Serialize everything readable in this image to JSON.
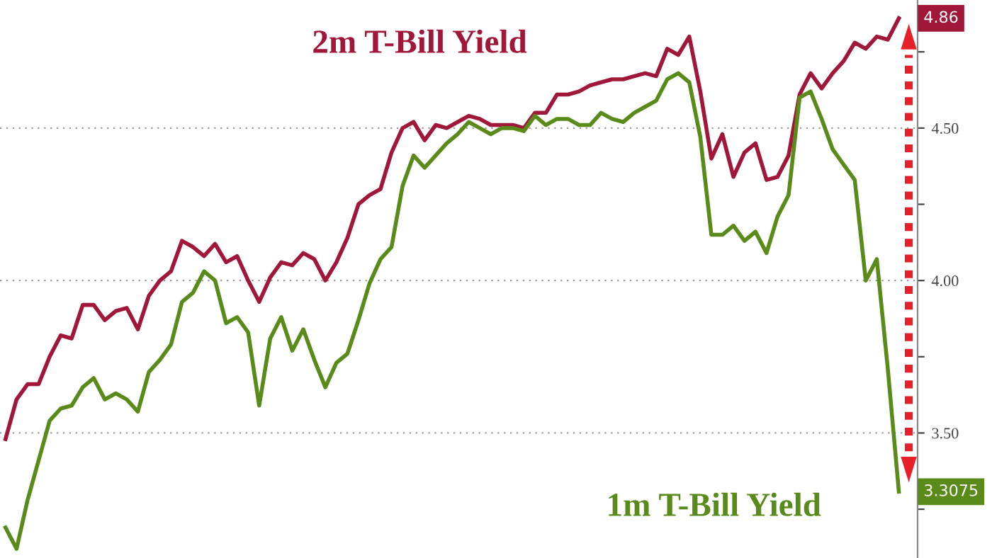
{
  "chart_data": {
    "type": "line",
    "categories": [
      null,
      null,
      null,
      null,
      null,
      null,
      null,
      null,
      null,
      null,
      null,
      null,
      null,
      null,
      null,
      null,
      null,
      null,
      null,
      null,
      null,
      null,
      null,
      null,
      null,
      null,
      null,
      null,
      null,
      null,
      null,
      null,
      null,
      null,
      null,
      null,
      null,
      null,
      null,
      null,
      null,
      null,
      null,
      null,
      null,
      null,
      null,
      null,
      null,
      null,
      null,
      null,
      null,
      null,
      null,
      null,
      null,
      null,
      null,
      null,
      null,
      null,
      null,
      null,
      null,
      null,
      null,
      null,
      null,
      null,
      null,
      null,
      null,
      null,
      null,
      null,
      null,
      null,
      null,
      null,
      null,
      null
    ],
    "series": [
      {
        "name": "2m T-Bill Yield",
        "color": "#a0173a",
        "values": [
          3.48,
          3.61,
          3.66,
          3.66,
          3.75,
          3.82,
          3.81,
          3.92,
          3.92,
          3.87,
          3.9,
          3.91,
          3.84,
          3.95,
          4.0,
          4.03,
          4.13,
          4.11,
          4.08,
          4.12,
          4.06,
          4.08,
          4.0,
          3.93,
          4.01,
          4.06,
          4.05,
          4.09,
          4.07,
          4.0,
          4.06,
          4.14,
          4.25,
          4.28,
          4.3,
          4.42,
          4.5,
          4.52,
          4.46,
          4.51,
          4.5,
          4.52,
          4.54,
          4.53,
          4.51,
          4.51,
          4.51,
          4.5,
          4.55,
          4.55,
          4.61,
          4.61,
          4.62,
          4.64,
          4.65,
          4.66,
          4.66,
          4.67,
          4.68,
          4.67,
          4.76,
          4.74,
          4.8,
          4.62,
          4.4,
          4.48,
          4.34,
          4.42,
          4.45,
          4.33,
          4.34,
          4.41,
          4.61,
          4.68,
          4.63,
          4.68,
          4.72,
          4.78,
          4.76,
          4.8,
          4.79,
          4.86
        ],
        "value_labels": [
          null,
          null,
          null,
          null,
          null,
          null,
          null,
          null,
          null,
          null,
          null,
          null,
          null,
          null,
          null,
          null,
          null,
          null,
          null,
          null,
          null,
          null,
          null,
          null,
          null,
          null,
          null,
          null,
          null,
          null,
          null,
          null,
          null,
          null,
          null,
          null,
          null,
          null,
          null,
          null,
          null,
          null,
          null,
          null,
          null,
          null,
          null,
          null,
          null,
          null,
          null,
          null,
          null,
          null,
          null,
          null,
          null,
          null,
          null,
          null,
          null,
          null,
          null,
          null,
          null,
          null,
          null,
          null,
          null,
          null,
          null,
          null,
          null,
          null,
          null,
          null,
          null,
          null,
          null,
          null,
          null,
          "4.86"
        ]
      },
      {
        "name": "1m T-Bill Yield",
        "color": "#5a8a1a",
        "values": [
          3.19,
          3.12,
          3.28,
          3.41,
          3.54,
          3.58,
          3.59,
          3.65,
          3.68,
          3.61,
          3.63,
          3.61,
          3.57,
          3.7,
          3.74,
          3.79,
          3.93,
          3.96,
          4.03,
          4.0,
          3.86,
          3.88,
          3.83,
          3.59,
          3.81,
          3.88,
          3.77,
          3.84,
          3.74,
          3.65,
          3.73,
          3.76,
          3.87,
          3.99,
          4.07,
          4.11,
          4.31,
          4.41,
          4.37,
          4.41,
          4.45,
          4.48,
          4.52,
          4.5,
          4.48,
          4.5,
          4.5,
          4.49,
          4.54,
          4.51,
          4.53,
          4.53,
          4.51,
          4.51,
          4.55,
          4.53,
          4.52,
          4.55,
          4.57,
          4.59,
          4.66,
          4.68,
          4.65,
          4.47,
          4.15,
          4.15,
          4.18,
          4.13,
          4.16,
          4.09,
          4.21,
          4.28,
          4.6,
          4.62,
          4.53,
          4.43,
          4.38,
          4.33,
          4.0,
          4.07,
          3.71,
          3.3075
        ],
        "value_labels": [
          null,
          null,
          null,
          null,
          null,
          null,
          null,
          null,
          null,
          null,
          null,
          null,
          null,
          null,
          null,
          null,
          null,
          null,
          null,
          null,
          null,
          null,
          null,
          null,
          null,
          null,
          null,
          null,
          null,
          null,
          null,
          null,
          null,
          null,
          null,
          null,
          null,
          null,
          null,
          null,
          null,
          null,
          null,
          null,
          null,
          null,
          null,
          null,
          null,
          null,
          null,
          null,
          null,
          null,
          null,
          null,
          null,
          null,
          null,
          null,
          null,
          null,
          null,
          null,
          null,
          null,
          null,
          null,
          null,
          null,
          null,
          null,
          null,
          null,
          null,
          null,
          null,
          null,
          null,
          null,
          null,
          "3.3075"
        ]
      }
    ],
    "ylim": [
      3.09,
      4.92
    ],
    "yticks": [
      {
        "value": 3.25,
        "label": null
      },
      {
        "value": 3.5,
        "label": "3.50"
      },
      {
        "value": 3.75,
        "label": null
      },
      {
        "value": 4.0,
        "label": "4.00"
      },
      {
        "value": 4.25,
        "label": null
      },
      {
        "value": 4.5,
        "label": "4.50"
      },
      {
        "value": 4.75,
        "label": null
      }
    ],
    "grid": "y",
    "marker": "none",
    "line_style": "solid",
    "legend": false,
    "tick_labels": "y"
  }
}
